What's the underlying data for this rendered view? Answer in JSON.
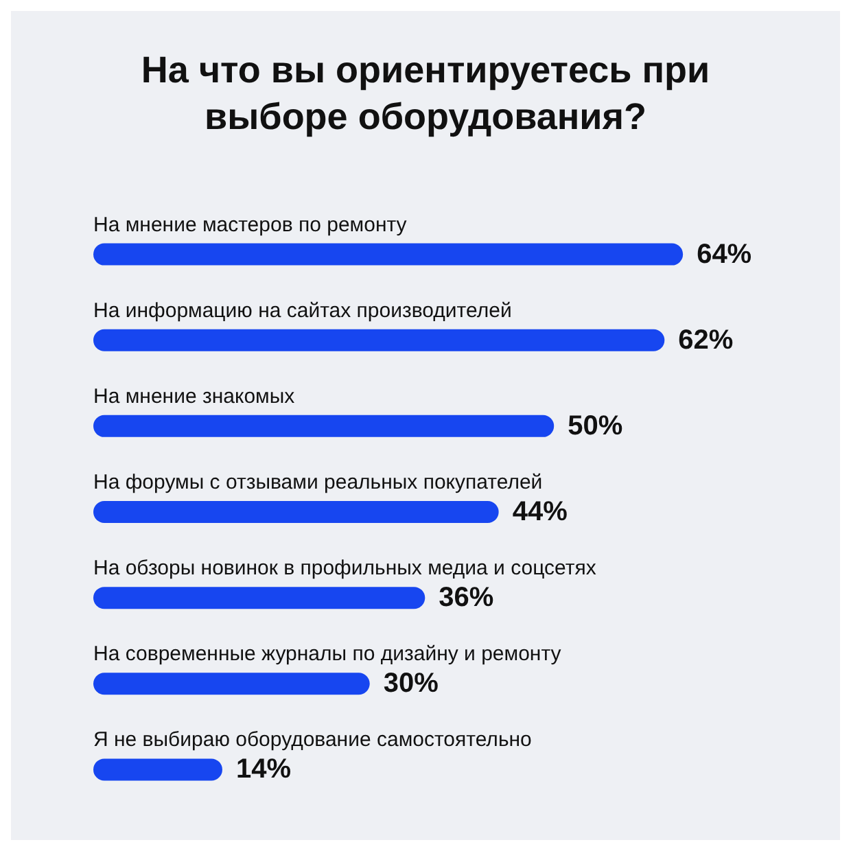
{
  "chart_data": {
    "type": "bar",
    "orientation": "horizontal",
    "title": "На что вы ориентируетесь при выборе оборудования?",
    "categories": [
      "На мнение мастеров по ремонту",
      "На информацию на сайтах производителей",
      "На мнение знакомых",
      "На форумы с отзывами реальных покупателей",
      "На обзоры новинок в профильных медиа и соцсетях",
      "На современные журналы по дизайну и ремонту",
      "Я не выбираю оборудование самостоятельно"
    ],
    "values": [
      64,
      62,
      50,
      44,
      36,
      30,
      14
    ],
    "value_labels": [
      "64%",
      "62%",
      "50%",
      "44%",
      "36%",
      "30%",
      "14%"
    ],
    "color": "#1746f0",
    "tick_labels": false
  }
}
